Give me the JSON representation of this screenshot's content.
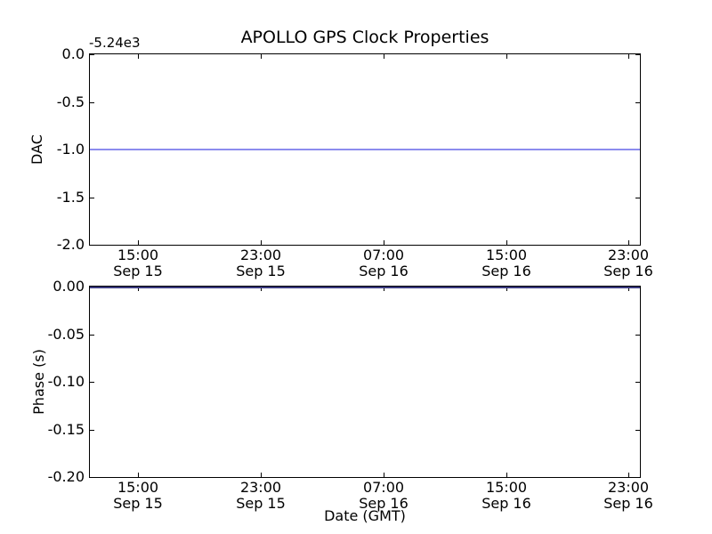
{
  "figure": {
    "title": "APOLLO GPS Clock Properties",
    "background_color": "#ffffff",
    "axis_color": "#000000"
  },
  "chart_data": [
    {
      "type": "line",
      "title": "APOLLO GPS Clock Properties",
      "ylabel": "DAC",
      "xlabel": "",
      "y_offset_text": "-5.24e3",
      "ylim": [
        -2.0,
        0.0
      ],
      "ytick_labels": [
        "0.0",
        "-0.5",
        "-1.0",
        "-1.5",
        "-2.0"
      ],
      "xtick_labels": [
        {
          "time": "15:00",
          "date": "Sep 15"
        },
        {
          "time": "23:00",
          "date": "Sep 15"
        },
        {
          "time": "07:00",
          "date": "Sep 16"
        },
        {
          "time": "15:00",
          "date": "Sep 16"
        },
        {
          "time": "23:00",
          "date": "Sep 16"
        }
      ],
      "grid": false,
      "legend": "none",
      "series": [
        {
          "name": "DAC",
          "shape": "constant-horizontal-line",
          "value": -1.0,
          "value_with_offset": -5241.0,
          "color": "#8c8cee"
        }
      ]
    },
    {
      "type": "line",
      "title": "",
      "ylabel": "Phase (s)",
      "xlabel": "Date (GMT)",
      "ylim": [
        -0.2,
        0.0
      ],
      "ytick_labels": [
        "0.00",
        "-0.05",
        "-0.10",
        "-0.15",
        "-0.20"
      ],
      "xtick_labels": [
        {
          "time": "15:00",
          "date": "Sep 15"
        },
        {
          "time": "23:00",
          "date": "Sep 15"
        },
        {
          "time": "07:00",
          "date": "Sep 16"
        },
        {
          "time": "15:00",
          "date": "Sep 16"
        },
        {
          "time": "23:00",
          "date": "Sep 16"
        }
      ],
      "grid": false,
      "legend": "none",
      "series": [
        {
          "name": "Phase",
          "shape": "constant-horizontal-line",
          "value": 0.0,
          "color": "#3c3c80"
        }
      ]
    }
  ]
}
